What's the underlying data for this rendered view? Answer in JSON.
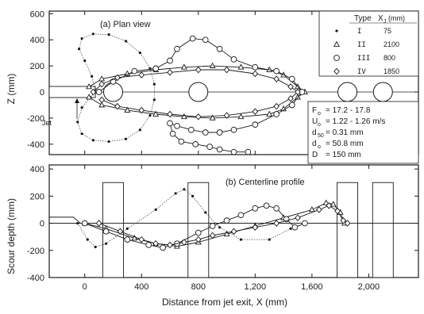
{
  "chart_data": [
    {
      "type": "scatter",
      "panel_label": "(a) Plan view",
      "ylabel": "Z (mm)",
      "xlim": [
        -250,
        2350
      ],
      "ylim": [
        -480,
        620
      ],
      "y_ticks": [
        "600",
        "400",
        "200",
        "0",
        "-200",
        "-400"
      ],
      "y_tick_values": [
        600,
        400,
        200,
        0,
        -200,
        -400
      ],
      "grid": false,
      "annotation_jet": "Jet",
      "legend": {
        "position": "top-right",
        "headers": [
          "Type",
          "X_j (mm)"
        ],
        "header_type": "Type",
        "header_x": "X",
        "header_x_sub": "J",
        "header_x_unit": "(mm)",
        "entries": [
          {
            "type": "I",
            "value": "75",
            "marker": "dot"
          },
          {
            "type": "II",
            "value": "2100",
            "marker": "triangle"
          },
          {
            "type": "III",
            "value": "800",
            "marker": "circle"
          },
          {
            "type": "IV",
            "value": "1850",
            "marker": "diamond"
          }
        ]
      },
      "parameters": [
        {
          "sym": "F",
          "sub": "o",
          "val": "= 17.2 - 17.8"
        },
        {
          "sym": "U",
          "sub": "o",
          "val": "= 1.22 - 1.26 m/s"
        },
        {
          "sym": "d",
          "sub": "50",
          "val": "= 0.31 mm"
        },
        {
          "sym": "d",
          "sub": "o",
          "val": "= 50.8 mm"
        },
        {
          "sym": "D",
          "sub": "",
          "val": "= 150 mm"
        }
      ],
      "piers_x": [
        200,
        800,
        1850,
        2100
      ],
      "series": [
        {
          "name": "I",
          "marker": "dot",
          "points": [
            [
              75,
              0
            ],
            [
              50,
              120
            ],
            [
              0,
              240
            ],
            [
              -40,
              330
            ],
            [
              -20,
              410
            ],
            [
              60,
              445
            ],
            [
              170,
              440
            ],
            [
              290,
              390
            ],
            [
              390,
              300
            ],
            [
              460,
              180
            ],
            [
              490,
              60
            ],
            [
              490,
              -60
            ],
            [
              460,
              -180
            ],
            [
              390,
              -290
            ],
            [
              290,
              -360
            ],
            [
              170,
              -380
            ],
            [
              60,
              -370
            ],
            [
              -20,
              -320
            ],
            [
              -50,
              -230
            ],
            [
              -20,
              -120
            ],
            [
              40,
              -40
            ],
            [
              75,
              0
            ]
          ]
        },
        {
          "name": "II",
          "marker": "triangle",
          "points": [
            [
              30,
              40
            ],
            [
              120,
              100
            ],
            [
              300,
              140
            ],
            [
              500,
              170
            ],
            [
              700,
              190
            ],
            [
              900,
              200
            ],
            [
              1100,
              190
            ],
            [
              1300,
              170
            ],
            [
              1400,
              130
            ],
            [
              1500,
              40
            ],
            [
              1550,
              0
            ],
            [
              1500,
              -40
            ],
            [
              1400,
              -130
            ],
            [
              1300,
              -170
            ],
            [
              1100,
              -190
            ],
            [
              900,
              -200
            ],
            [
              700,
              -190
            ],
            [
              500,
              -170
            ],
            [
              300,
              -140
            ],
            [
              120,
              -100
            ],
            [
              30,
              -40
            ]
          ]
        },
        {
          "name": "III",
          "marker": "circle",
          "points": [
            [
              100,
              0
            ],
            [
              200,
              80
            ],
            [
              350,
              160
            ],
            [
              500,
              180
            ],
            [
              600,
              240
            ],
            [
              650,
              330
            ],
            [
              760,
              410
            ],
            [
              850,
              400
            ],
            [
              950,
              330
            ],
            [
              1050,
              250
            ],
            [
              1200,
              190
            ],
            [
              1350,
              160
            ],
            [
              1460,
              100
            ],
            [
              1530,
              0
            ],
            [
              1460,
              -100
            ],
            [
              1350,
              -170
            ],
            [
              1200,
              -250
            ],
            [
              1050,
              -290
            ],
            [
              950,
              -310
            ],
            [
              850,
              -310
            ],
            [
              750,
              -290
            ],
            [
              650,
              -260
            ],
            [
              600,
              -240
            ],
            [
              620,
              -320
            ],
            [
              680,
              -380
            ],
            [
              780,
              -400
            ],
            [
              880,
              -420
            ],
            [
              950,
              -440
            ],
            [
              1050,
              -460
            ],
            [
              1150,
              -460
            ]
          ]
        },
        {
          "name": "IV",
          "marker": "diamond",
          "points": [
            [
              60,
              0
            ],
            [
              120,
              60
            ],
            [
              230,
              110
            ],
            [
              400,
              130
            ],
            [
              600,
              150
            ],
            [
              800,
              170
            ],
            [
              1000,
              170
            ],
            [
              1200,
              140
            ],
            [
              1350,
              100
            ],
            [
              1450,
              40
            ],
            [
              1500,
              0
            ],
            [
              1450,
              -50
            ],
            [
              1350,
              -110
            ],
            [
              1200,
              -150
            ],
            [
              1000,
              -180
            ],
            [
              800,
              -190
            ],
            [
              600,
              -170
            ],
            [
              400,
              -140
            ],
            [
              230,
              -110
            ],
            [
              120,
              -60
            ]
          ]
        }
      ]
    },
    {
      "type": "line",
      "panel_label": "(b) Centerline profile",
      "xlabel": "Distance from jet exit, X (mm)",
      "ylabel": "Scour depth (mm)",
      "xlim": [
        -250,
        2350
      ],
      "ylim": [
        -400,
        430
      ],
      "y_ticks": [
        "400",
        "200",
        "0",
        "-200",
        "-400"
      ],
      "y_tick_values": [
        400,
        200,
        0,
        -200,
        -400
      ],
      "x_ticks": [
        "0",
        "400",
        "800",
        "1,200",
        "1,600",
        "2,000"
      ],
      "x_tick_values": [
        0,
        400,
        800,
        1200,
        1600,
        2000
      ],
      "grid": false,
      "piers_x": [
        200,
        800,
        1850,
        2100
      ],
      "series": [
        {
          "name": "I",
          "marker": "dot",
          "points": [
            [
              -50,
              0
            ],
            [
              20,
              -120
            ],
            [
              75,
              -175
            ],
            [
              150,
              -150
            ],
            [
              300,
              -40
            ],
            [
              500,
              100
            ],
            [
              640,
              220
            ],
            [
              700,
              250
            ],
            [
              760,
              200
            ],
            [
              850,
              80
            ],
            [
              950,
              -30
            ],
            [
              1100,
              -120
            ],
            [
              1300,
              -120
            ],
            [
              1450,
              -40
            ]
          ]
        },
        {
          "name": "II",
          "marker": "triangle",
          "points": [
            [
              0,
              0
            ],
            [
              150,
              -40
            ],
            [
              350,
              -110
            ],
            [
              500,
              -150
            ],
            [
              650,
              -170
            ],
            [
              800,
              -140
            ],
            [
              1000,
              -80
            ],
            [
              1200,
              -20
            ],
            [
              1400,
              40
            ],
            [
              1600,
              100
            ],
            [
              1700,
              150
            ],
            [
              1750,
              140
            ],
            [
              1800,
              80
            ],
            [
              1830,
              0
            ]
          ]
        },
        {
          "name": "III",
          "marker": "circle",
          "points": [
            [
              0,
              0
            ],
            [
              150,
              -60
            ],
            [
              300,
              -120
            ],
            [
              450,
              -160
            ],
            [
              550,
              -180
            ],
            [
              650,
              -150
            ],
            [
              800,
              -70
            ],
            [
              900,
              -20
            ],
            [
              1000,
              20
            ],
            [
              1100,
              60
            ],
            [
              1200,
              110
            ],
            [
              1280,
              130
            ],
            [
              1350,
              110
            ],
            [
              1420,
              30
            ],
            [
              1480,
              -30
            ],
            [
              1550,
              0
            ]
          ]
        },
        {
          "name": "IV",
          "marker": "diamond",
          "points": [
            [
              100,
              0
            ],
            [
              250,
              -60
            ],
            [
              400,
              -120
            ],
            [
              500,
              -150
            ],
            [
              600,
              -160
            ],
            [
              700,
              -140
            ],
            [
              800,
              -120
            ],
            [
              900,
              -90
            ],
            [
              1050,
              -60
            ],
            [
              1200,
              -30
            ],
            [
              1350,
              0
            ],
            [
              1500,
              40
            ],
            [
              1650,
              100
            ],
            [
              1720,
              130
            ],
            [
              1780,
              90
            ],
            [
              1820,
              20
            ],
            [
              1850,
              0
            ]
          ]
        }
      ]
    }
  ]
}
